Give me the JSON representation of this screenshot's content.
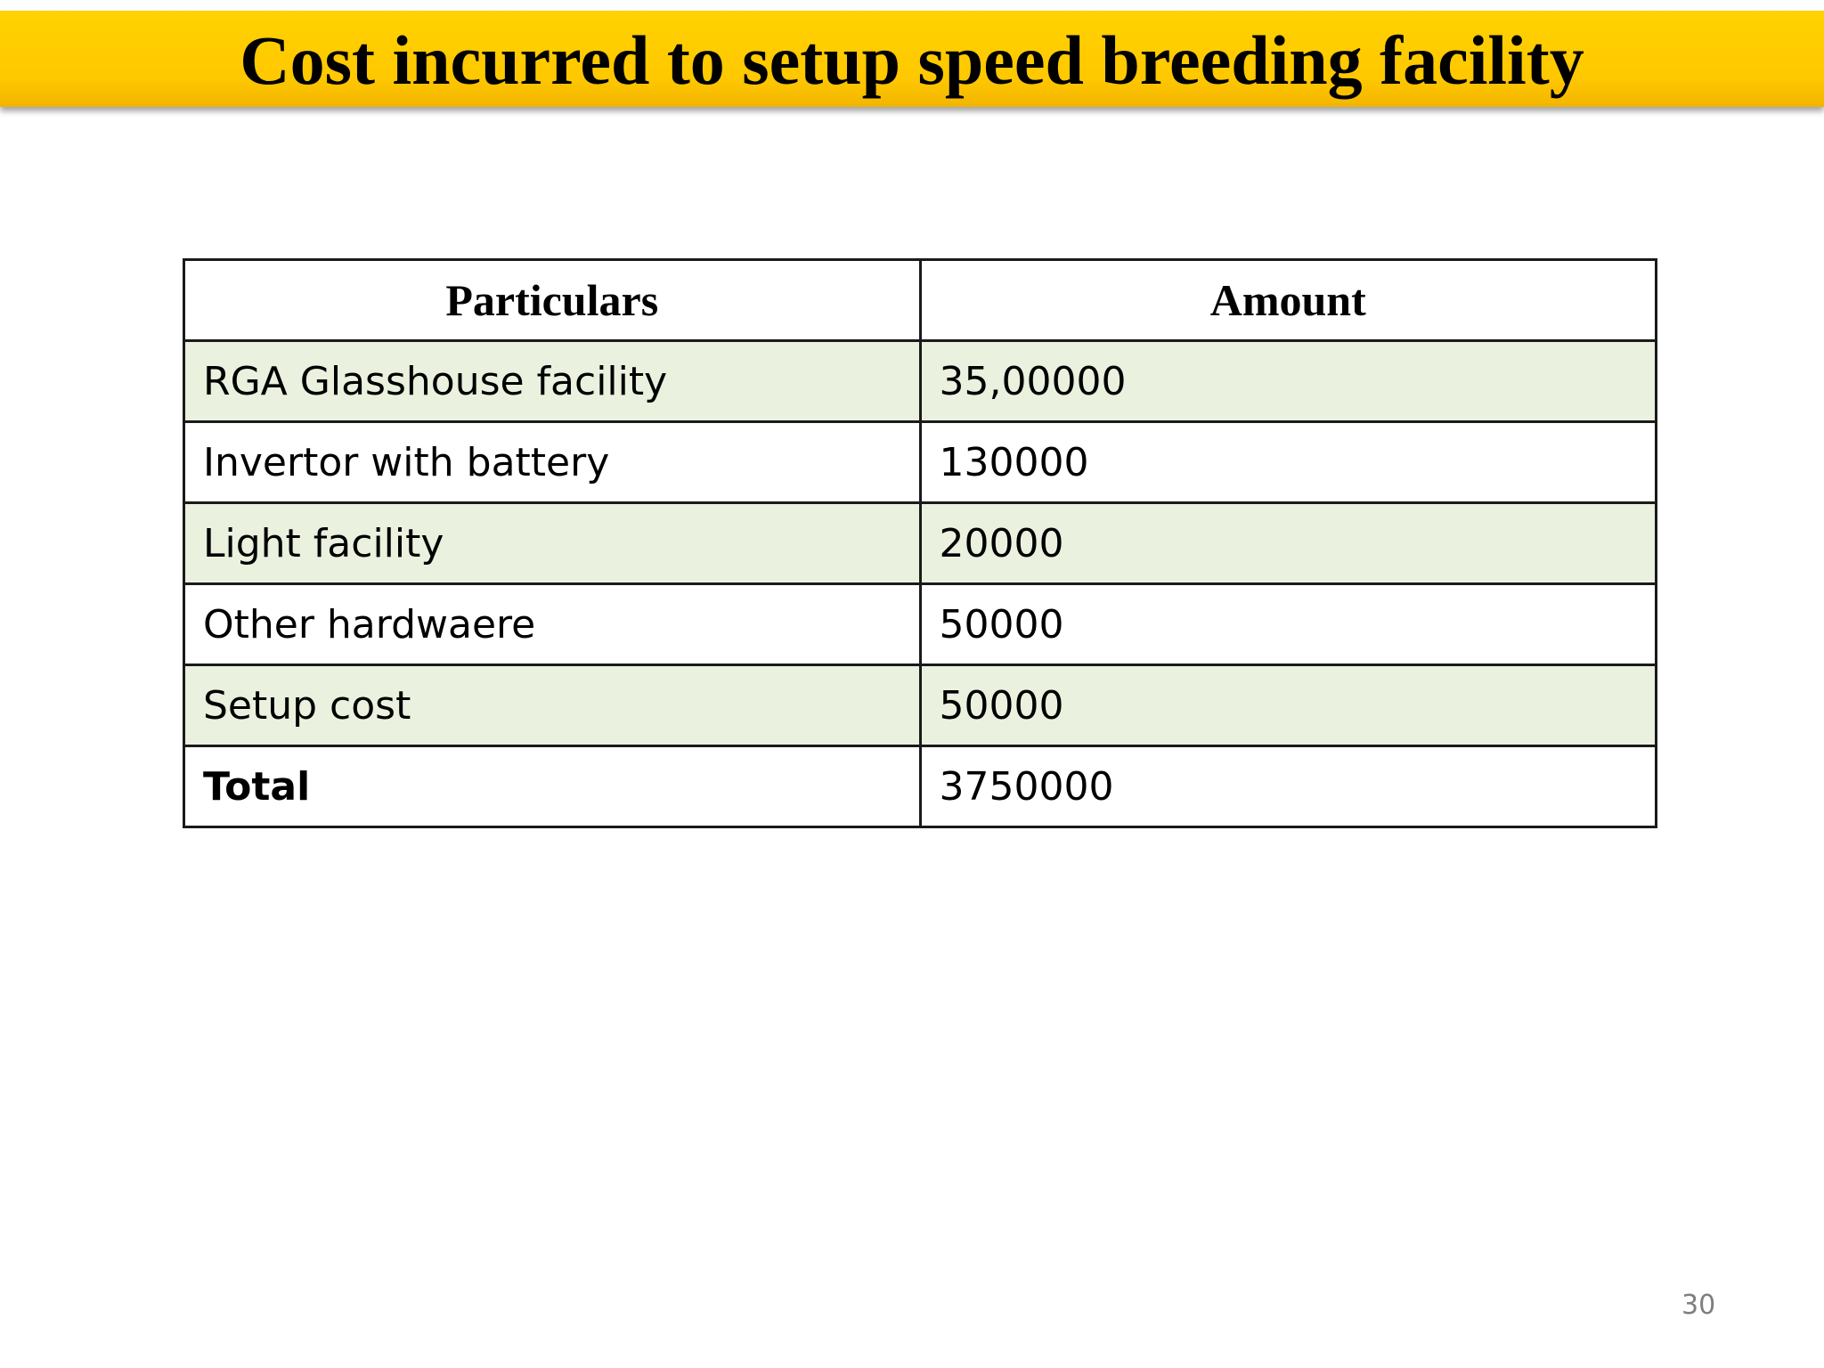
{
  "slide": {
    "title": "Cost incurred to setup speed breeding facility",
    "page_number": "30",
    "colors": {
      "title_bar": "#ffc800",
      "row_shade": "#eaf1de"
    }
  },
  "table": {
    "headers": [
      "Particulars",
      "Amount"
    ],
    "rows": [
      {
        "particular": "RGA Glasshouse facility",
        "amount": "35,00000"
      },
      {
        "particular": "Invertor with battery",
        "amount": "130000"
      },
      {
        "particular": "Light facility",
        "amount": "20000"
      },
      {
        "particular": "Other hardwaere",
        "amount": "50000"
      },
      {
        "particular": "Setup cost",
        "amount": "50000"
      },
      {
        "particular": "Total",
        "amount": "3750000"
      }
    ]
  }
}
